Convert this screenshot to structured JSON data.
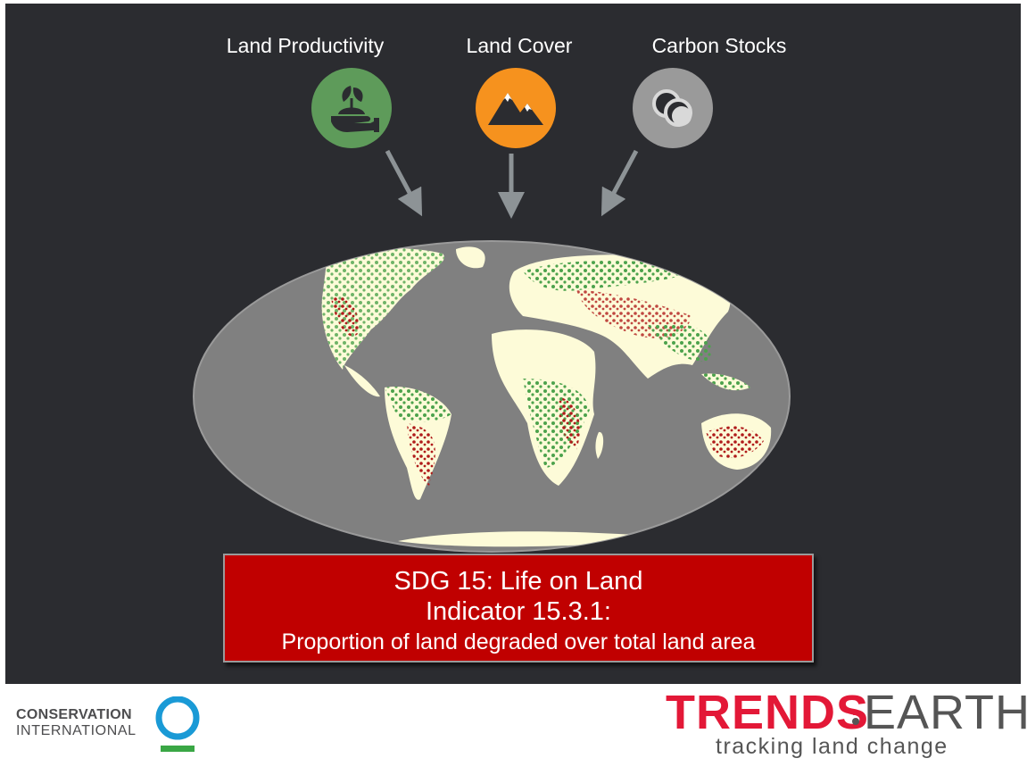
{
  "indicators": [
    {
      "label": "Land Productivity",
      "icon": "plant-in-hand-icon",
      "color": "#5e9b5a"
    },
    {
      "label": "Land Cover",
      "icon": "mountains-icon",
      "color": "#f6921e"
    },
    {
      "label": "Carbon Stocks",
      "icon": "carbon-circles-icon",
      "color": "#9a9a9a"
    }
  ],
  "sdg": {
    "line1": "SDG 15: Life on Land",
    "line2": "Indicator 15.3.1:",
    "line3": "Proportion of land degraded over total land area",
    "box_color": "#c00000"
  },
  "footer": {
    "ci_line1": "CONSERVATION",
    "ci_line2": "INTERNATIONAL",
    "te_brand_part1": "TRENDS",
    "te_brand_part2": "EARTH",
    "te_tagline": "tracking land change",
    "te_brand_color": "#e31837"
  },
  "map_colors": {
    "ocean": "#808080",
    "land": "#fdfbd8",
    "improving": "#4ca24c",
    "degrading": "#b01a1a"
  }
}
